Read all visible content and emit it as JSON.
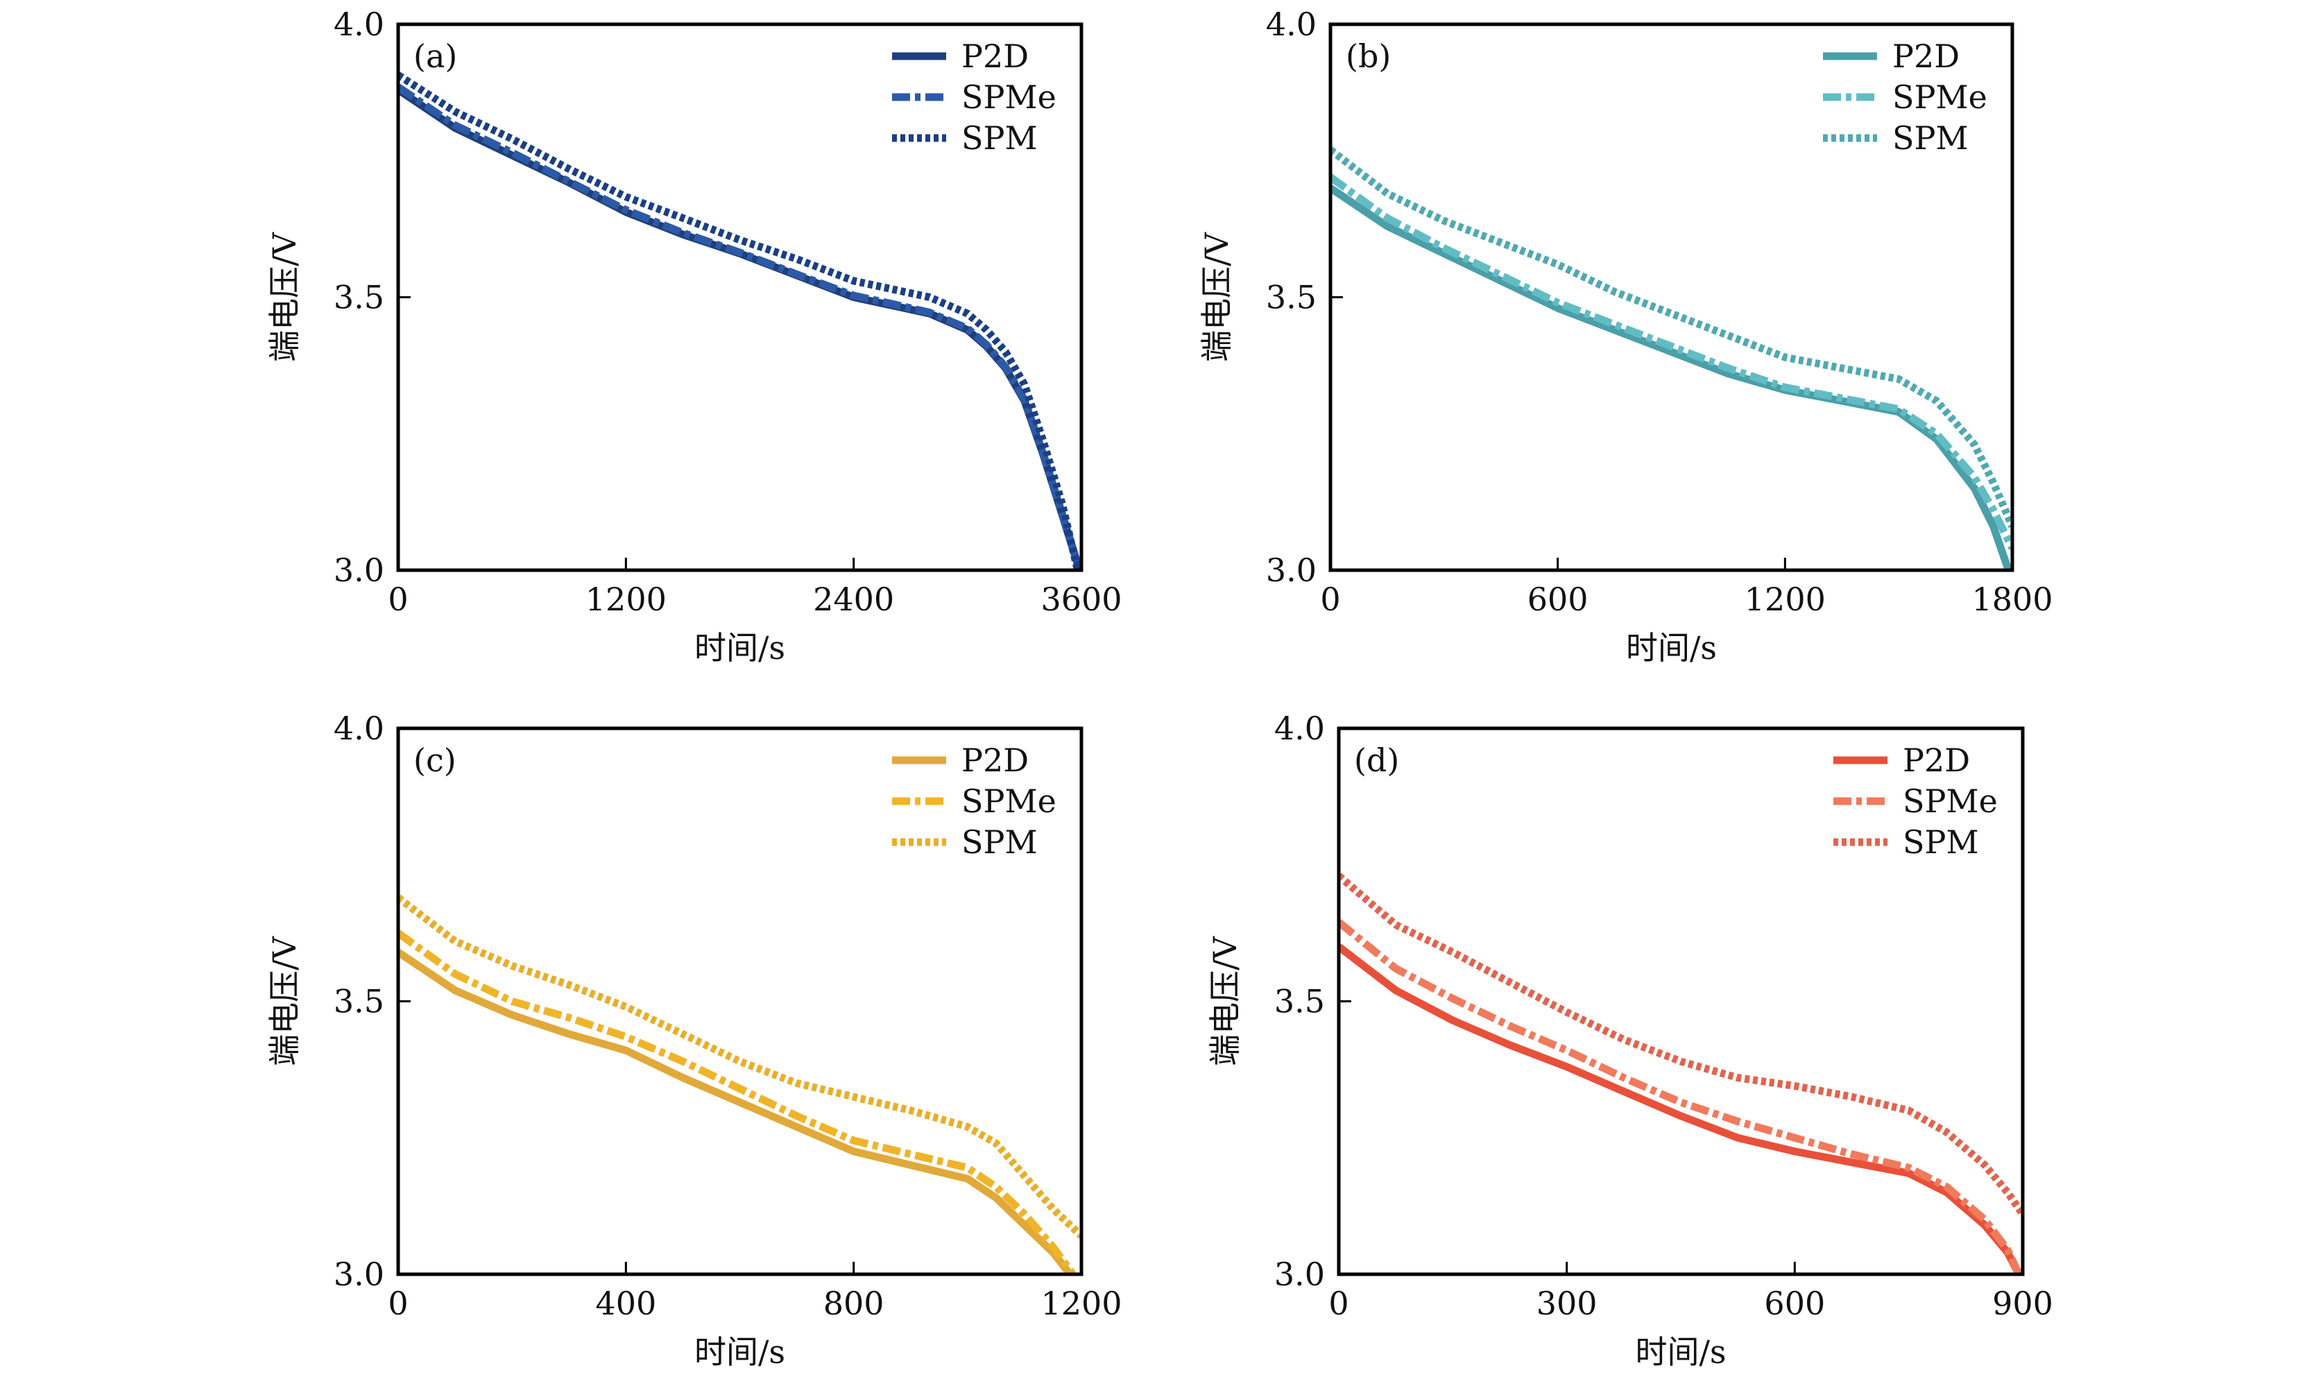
{
  "figure": {
    "panels_count": 4
  },
  "chart_data": [
    {
      "type": "line",
      "panel_label": "(a)",
      "xlabel": "时间/s",
      "ylabel": "端电压/V",
      "xlim": [
        0,
        3600
      ],
      "ylim": [
        3.0,
        4.0
      ],
      "xticks": [
        0,
        1200,
        2400,
        3600
      ],
      "xtick_labels": [
        "0",
        "1200",
        "2400",
        "3600"
      ],
      "yticks": [
        3.0,
        3.5,
        4.0
      ],
      "ytick_labels": [
        "3.0",
        "3.5",
        "4.0"
      ],
      "legend_position": "top-right",
      "series": [
        {
          "name": "P2D",
          "style": "solid",
          "color": "#1f3f7c",
          "x": [
            0,
            300,
            600,
            900,
            1200,
            1500,
            1800,
            2100,
            2400,
            2600,
            2800,
            3000,
            3100,
            3200,
            3300,
            3400,
            3500,
            3590
          ],
          "y": [
            3.88,
            3.81,
            3.76,
            3.71,
            3.656,
            3.615,
            3.58,
            3.54,
            3.5,
            3.485,
            3.47,
            3.44,
            3.41,
            3.37,
            3.31,
            3.21,
            3.1,
            3.0
          ]
        },
        {
          "name": "SPMe",
          "style": "dashdot",
          "color": "#2d5aa6",
          "x": [
            0,
            300,
            600,
            900,
            1200,
            1500,
            1800,
            2100,
            2400,
            2600,
            2800,
            3000,
            3100,
            3200,
            3300,
            3400,
            3500,
            3590
          ],
          "y": [
            3.885,
            3.815,
            3.765,
            3.712,
            3.66,
            3.618,
            3.582,
            3.542,
            3.503,
            3.488,
            3.472,
            3.443,
            3.413,
            3.372,
            3.312,
            3.212,
            3.102,
            3.0
          ]
        },
        {
          "name": "SPM",
          "style": "dotted",
          "color": "#1b3f86",
          "x": [
            0,
            300,
            600,
            900,
            1200,
            1500,
            1800,
            2100,
            2400,
            2600,
            2800,
            3000,
            3100,
            3200,
            3300,
            3400,
            3500,
            3580
          ],
          "y": [
            3.907,
            3.84,
            3.79,
            3.735,
            3.684,
            3.645,
            3.605,
            3.57,
            3.53,
            3.515,
            3.5,
            3.47,
            3.44,
            3.4,
            3.34,
            3.235,
            3.12,
            3.0
          ]
        }
      ]
    },
    {
      "type": "line",
      "panel_label": "(b)",
      "xlabel": "时间/s",
      "ylabel": "端电压/V",
      "xlim": [
        0,
        1800
      ],
      "ylim": [
        3.0,
        4.0
      ],
      "xticks": [
        0,
        600,
        1200,
        1800
      ],
      "xtick_labels": [
        "0",
        "600",
        "1200",
        "1800"
      ],
      "yticks": [
        3.0,
        3.5,
        4.0
      ],
      "ytick_labels": [
        "3.0",
        "3.5",
        "4.0"
      ],
      "legend_position": "top-right",
      "series": [
        {
          "name": "P2D",
          "style": "solid",
          "color": "#4a9fa8",
          "x": [
            0,
            150,
            300,
            450,
            600,
            750,
            900,
            1050,
            1200,
            1350,
            1500,
            1600,
            1700,
            1750,
            1790
          ],
          "y": [
            3.7,
            3.63,
            3.58,
            3.53,
            3.48,
            3.44,
            3.4,
            3.36,
            3.33,
            3.31,
            3.29,
            3.24,
            3.15,
            3.08,
            3.0
          ]
        },
        {
          "name": "SPMe",
          "style": "dashdot",
          "color": "#62bcc4",
          "x": [
            0,
            150,
            300,
            450,
            600,
            750,
            900,
            1050,
            1200,
            1350,
            1500,
            1600,
            1700,
            1750,
            1800
          ],
          "y": [
            3.72,
            3.645,
            3.59,
            3.54,
            3.49,
            3.45,
            3.41,
            3.37,
            3.335,
            3.315,
            3.295,
            3.25,
            3.17,
            3.11,
            3.04
          ]
        },
        {
          "name": "SPM",
          "style": "dotted",
          "color": "#4fa9b1",
          "x": [
            0,
            150,
            300,
            450,
            600,
            750,
            900,
            1050,
            1200,
            1350,
            1500,
            1600,
            1700,
            1750,
            1800
          ],
          "y": [
            3.77,
            3.69,
            3.64,
            3.6,
            3.56,
            3.51,
            3.47,
            3.43,
            3.39,
            3.37,
            3.35,
            3.31,
            3.23,
            3.16,
            3.08
          ]
        }
      ]
    },
    {
      "type": "line",
      "panel_label": "(c)",
      "xlabel": "时间/s",
      "ylabel": "端电压/V",
      "xlim": [
        0,
        1200
      ],
      "ylim": [
        3.0,
        4.0
      ],
      "xticks": [
        0,
        400,
        800,
        1200
      ],
      "xtick_labels": [
        "0",
        "400",
        "800",
        "1200"
      ],
      "yticks": [
        3.0,
        3.5,
        4.0
      ],
      "ytick_labels": [
        "3.0",
        "3.5",
        "4.0"
      ],
      "legend_position": "top-right",
      "series": [
        {
          "name": "P2D",
          "style": "solid",
          "color": "#e0a93a",
          "x": [
            0,
            100,
            200,
            300,
            400,
            500,
            600,
            700,
            800,
            900,
            1000,
            1050,
            1100,
            1150,
            1180
          ],
          "y": [
            3.59,
            3.52,
            3.475,
            3.44,
            3.41,
            3.36,
            3.315,
            3.27,
            3.225,
            3.2,
            3.175,
            3.14,
            3.09,
            3.04,
            3.0
          ]
        },
        {
          "name": "SPMe",
          "style": "dashdot",
          "color": "#f0b429",
          "x": [
            0,
            100,
            200,
            300,
            400,
            500,
            600,
            700,
            800,
            900,
            1000,
            1050,
            1100,
            1150,
            1185
          ],
          "y": [
            3.625,
            3.55,
            3.5,
            3.47,
            3.435,
            3.39,
            3.34,
            3.29,
            3.245,
            3.22,
            3.195,
            3.16,
            3.11,
            3.05,
            3.0
          ]
        },
        {
          "name": "SPM",
          "style": "dotted",
          "color": "#e8ae2a",
          "x": [
            0,
            100,
            200,
            300,
            400,
            500,
            600,
            700,
            800,
            900,
            1000,
            1050,
            1100,
            1150,
            1200
          ],
          "y": [
            3.69,
            3.61,
            3.565,
            3.53,
            3.49,
            3.44,
            3.39,
            3.35,
            3.325,
            3.3,
            3.27,
            3.24,
            3.18,
            3.12,
            3.07
          ]
        }
      ]
    },
    {
      "type": "line",
      "panel_label": "(d)",
      "xlabel": "时间/s",
      "ylabel": "端电压/V",
      "xlim": [
        0,
        900
      ],
      "ylim": [
        3.0,
        4.0
      ],
      "xticks": [
        0,
        300,
        600,
        900
      ],
      "xtick_labels": [
        "0",
        "300",
        "600",
        "900"
      ],
      "yticks": [
        3.0,
        3.5,
        4.0
      ],
      "ytick_labels": [
        "3.0",
        "3.5",
        "4.0"
      ],
      "legend_position": "top-right",
      "series": [
        {
          "name": "P2D",
          "style": "solid",
          "color": "#e8503a",
          "x": [
            0,
            75,
            150,
            225,
            300,
            375,
            450,
            525,
            600,
            675,
            750,
            800,
            850,
            880,
            895
          ],
          "y": [
            3.6,
            3.52,
            3.465,
            3.42,
            3.38,
            3.335,
            3.29,
            3.25,
            3.225,
            3.205,
            3.185,
            3.15,
            3.09,
            3.04,
            3.0
          ]
        },
        {
          "name": "SPMe",
          "style": "dashdot",
          "color": "#f07a5c",
          "x": [
            0,
            75,
            150,
            225,
            300,
            375,
            450,
            525,
            600,
            675,
            750,
            800,
            850,
            880,
            895
          ],
          "y": [
            3.645,
            3.56,
            3.505,
            3.455,
            3.41,
            3.36,
            3.315,
            3.28,
            3.25,
            3.22,
            3.195,
            3.16,
            3.1,
            3.045,
            3.0
          ]
        },
        {
          "name": "SPM",
          "style": "dotted",
          "color": "#e0644f",
          "x": [
            0,
            75,
            150,
            225,
            300,
            375,
            450,
            525,
            600,
            675,
            750,
            800,
            850,
            880,
            900
          ],
          "y": [
            3.73,
            3.64,
            3.59,
            3.535,
            3.48,
            3.43,
            3.39,
            3.36,
            3.345,
            3.325,
            3.3,
            3.26,
            3.2,
            3.15,
            3.11
          ]
        }
      ]
    }
  ]
}
